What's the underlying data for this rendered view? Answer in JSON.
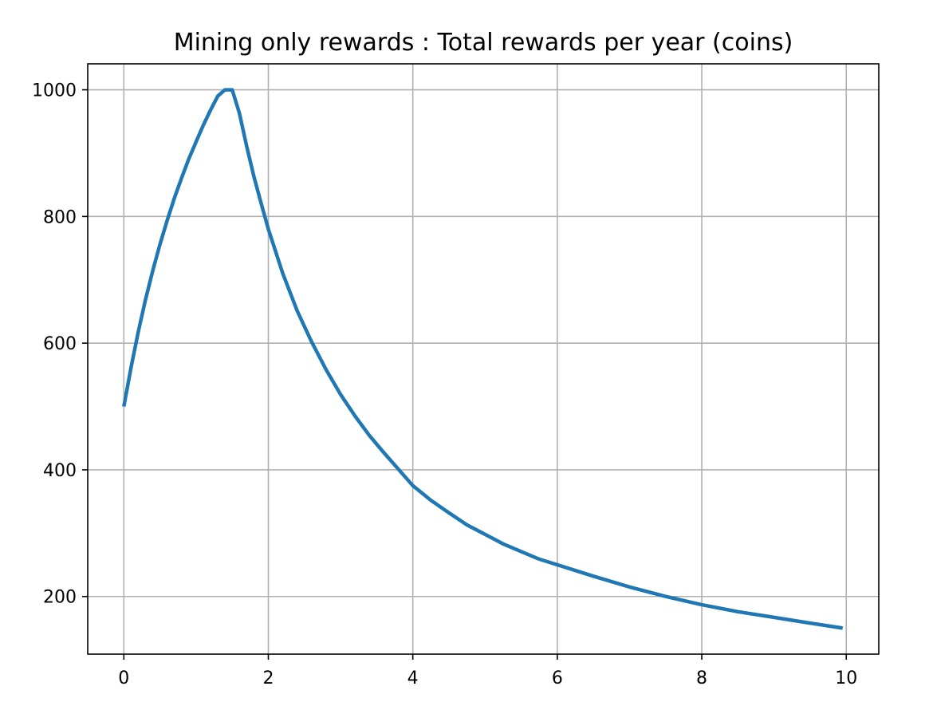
{
  "chart_data": {
    "type": "line",
    "title": "Mining only rewards : Total rewards per year (coins)",
    "xlabel": "",
    "ylabel": "",
    "xlim": [
      -0.5,
      10.45
    ],
    "ylim": [
      109,
      1041
    ],
    "xticks": [
      0,
      2,
      4,
      6,
      8,
      10
    ],
    "yticks": [
      200,
      400,
      600,
      800,
      1000
    ],
    "xtick_labels": [
      "0",
      "2",
      "4",
      "6",
      "8",
      "10"
    ],
    "ytick_labels": [
      "200",
      "400",
      "600",
      "800",
      "1000"
    ],
    "grid": true,
    "line_color": "#1f77b4",
    "grid_color": "#b0b0b0",
    "series": [
      {
        "x": [
          0,
          0.1,
          0.2,
          0.3,
          0.4,
          0.5,
          0.6,
          0.7,
          0.8,
          0.9,
          1.0,
          1.1,
          1.2,
          1.3,
          1.4,
          1.5,
          1.6,
          1.7,
          1.8,
          1.9,
          2.0,
          2.2,
          2.4,
          2.6,
          2.8,
          3.0,
          3.2,
          3.4,
          3.6,
          3.8,
          4.0,
          4.25,
          4.5,
          4.75,
          5.0,
          5.25,
          5.5,
          5.75,
          6.0,
          6.5,
          7.0,
          7.5,
          8.0,
          8.5,
          9.0,
          9.5,
          9.95
        ],
        "y": [
          500,
          562,
          618,
          669,
          714,
          756,
          794,
          829,
          861,
          891,
          918,
          944,
          968,
          990,
          1000,
          1000,
          963,
          911,
          863,
          821,
          780,
          710,
          651,
          602,
          558,
          519,
          485,
          454,
          427,
          401,
          375,
          352,
          332,
          313,
          298,
          283,
          271,
          259,
          250,
          232,
          215,
          200,
          187,
          176,
          167,
          158,
          150
        ]
      }
    ]
  }
}
